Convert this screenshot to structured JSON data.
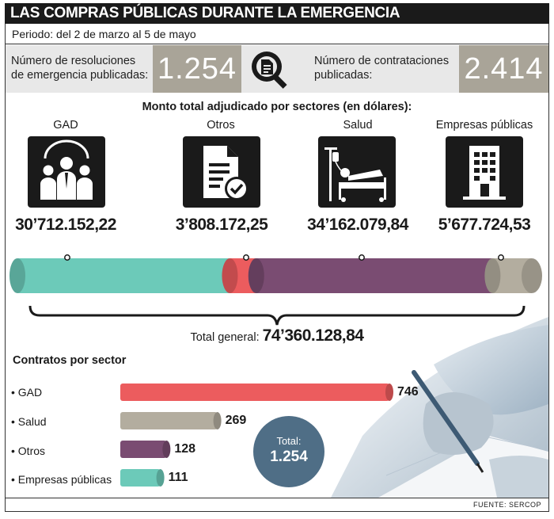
{
  "header": {
    "title": "LAS COMPRAS PÚBLICAS DURANTE LA EMERGENCIA",
    "period": "Periodo: del 2 de marzo al 5 de mayo"
  },
  "stats": {
    "resolutions_label_1": "Número de resoluciones",
    "resolutions_label_2": "de emergencia publicadas:",
    "resolutions_value": "1.254",
    "contracts_label_1": "Número de contrataciones",
    "contracts_label_2": "publicadas:",
    "contracts_value": "2.414",
    "icon": "document-search-icon"
  },
  "amounts": {
    "title": "Monto total adjudicado por sectores (en dólares):",
    "total_label": "Total general:",
    "total_value": "74’360.128,84"
  },
  "contracts": {
    "title": "Contratos por sector",
    "total_label": "Total:",
    "total_value": "1.254"
  },
  "source": "FUENTE: SERCOP",
  "colors": {
    "gad": "#ec5c5e",
    "salud": "#b3ad9f",
    "otros": "#7a4c72",
    "empresas": "#6ccab9",
    "total_circle": "#4f6e86"
  },
  "chart_data": [
    {
      "type": "bar",
      "title": "Monto total adjudicado por sectores (en dólares):",
      "orientation": "stacked-horizontal",
      "categories": [
        "GAD",
        "Otros",
        "Salud",
        "Empresas públicas"
      ],
      "values": [
        30712152.22,
        3808172.25,
        34162079.84,
        5677724.53
      ],
      "value_labels": [
        "30’712.152,22",
        "3’808.172,25",
        "34’162.079,84",
        "5’677.724,53"
      ],
      "icons": [
        "people-group-icon",
        "document-check-icon",
        "hospital-bed-icon",
        "building-icon"
      ],
      "colors": [
        "#6ccab9",
        "#ec5c5e",
        "#7a4c72",
        "#b3ad9f"
      ],
      "total": 74360128.84
    },
    {
      "type": "bar",
      "title": "Contratos por sector",
      "orientation": "horizontal",
      "categories": [
        "GAD",
        "Salud",
        "Otros",
        "Empresas públicas"
      ],
      "category_labels": [
        "• GAD",
        "• Salud",
        "• Otros",
        "• Empresas públicas"
      ],
      "values": [
        746,
        269,
        128,
        111
      ],
      "colors": [
        "#ec5c5e",
        "#b3ad9f",
        "#7a4c72",
        "#6ccab9"
      ],
      "total": 1254
    }
  ]
}
